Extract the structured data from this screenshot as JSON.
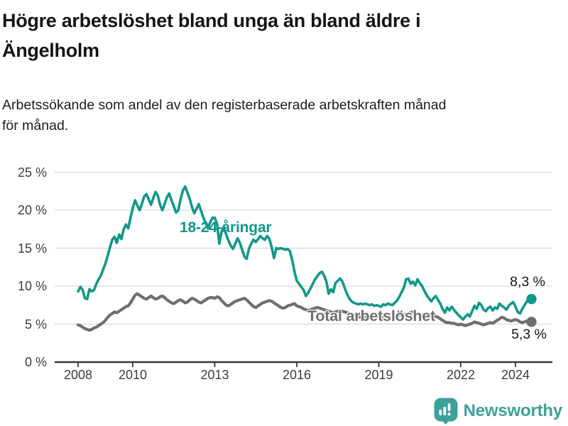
{
  "header": {
    "title_line1": "Högre arbetslöshet bland unga än bland äldre i",
    "title_line2": "Ängelholm",
    "subtitle_line1": "Arbetssökande som andel av den registerbaserade arbetskraften månad",
    "subtitle_line2": "för månad."
  },
  "chart_data": {
    "type": "line",
    "title": "Högre arbetslöshet bland unga än bland äldre i Ängelholm",
    "xlabel": "",
    "ylabel": "",
    "ylim": [
      0,
      25
    ],
    "grid": "horizontal",
    "legend_position": "inline-labels",
    "x_base_year": 2008,
    "x_unit": "month",
    "x_range_label": "2008-01 till 2024-08",
    "y_ticks": [
      {
        "value": 25,
        "label": "25 %"
      },
      {
        "value": 20,
        "label": "20 %"
      },
      {
        "value": 15,
        "label": "15 %"
      },
      {
        "value": 10,
        "label": "10 %"
      },
      {
        "value": 5,
        "label": "5 %"
      },
      {
        "value": 0,
        "label": "0 %"
      }
    ],
    "x_ticks": [
      {
        "year": 2008,
        "label": "2008"
      },
      {
        "year": 2010,
        "label": "2010"
      },
      {
        "year": 2013,
        "label": "2013"
      },
      {
        "year": 2016,
        "label": "2016"
      },
      {
        "year": 2019,
        "label": "2019"
      },
      {
        "year": 2022,
        "label": "2022"
      },
      {
        "year": 2024,
        "label": "2024"
      }
    ],
    "series": [
      {
        "name": "18-24-åringar",
        "color": "#12988b",
        "end_label": "8,3 %",
        "end_value": 8.3,
        "values": [
          9.3,
          9.9,
          9.5,
          8.4,
          8.3,
          9.6,
          9.3,
          9.5,
          10.3,
          10.9,
          11.4,
          12.2,
          13.0,
          14.0,
          15.1,
          16.1,
          16.5,
          15.7,
          16.8,
          16.2,
          17.5,
          18.1,
          17.6,
          19.0,
          20.3,
          21.3,
          20.6,
          20.0,
          20.8,
          21.8,
          22.1,
          21.4,
          20.7,
          21.6,
          22.4,
          21.9,
          20.7,
          20.0,
          20.8,
          21.7,
          22.2,
          21.3,
          20.5,
          19.7,
          20.0,
          21.5,
          22.6,
          23.1,
          22.3,
          21.5,
          20.4,
          19.6,
          20.2,
          20.8,
          19.9,
          19.0,
          18.3,
          17.6,
          18.4,
          19.0,
          19.0,
          18.2,
          15.6,
          17.2,
          17.8,
          16.8,
          16.0,
          15.3,
          14.9,
          15.6,
          16.3,
          15.7,
          14.8,
          13.9,
          13.6,
          14.9,
          15.6,
          16.1,
          15.8,
          16.2,
          16.6,
          16.3,
          16.1,
          16.6,
          16.2,
          15.1,
          13.7,
          15.0,
          14.9,
          15.0,
          14.9,
          14.8,
          14.9,
          14.6,
          13.4,
          11.9,
          10.7,
          10.3,
          9.9,
          9.5,
          8.7,
          9.1,
          9.7,
          10.3,
          10.9,
          11.3,
          11.7,
          11.9,
          11.4,
          10.6,
          9.0,
          9.6,
          9.2,
          10.4,
          10.7,
          11.0,
          10.6,
          9.8,
          9.0,
          8.4,
          8.0,
          7.8,
          7.7,
          7.6,
          7.7,
          7.6,
          7.7,
          7.6,
          7.5,
          7.6,
          7.4,
          7.5,
          7.4,
          7.3,
          7.6,
          7.5,
          7.7,
          7.6,
          7.5,
          7.8,
          8.1,
          8.6,
          9.2,
          9.8,
          10.9,
          11.0,
          10.3,
          10.6,
          10.1,
          10.9,
          10.4,
          10.0,
          9.4,
          8.8,
          8.4,
          8.0,
          8.4,
          8.7,
          8.2,
          7.7,
          7.0,
          6.5,
          7.2,
          6.8,
          7.3,
          6.9,
          6.5,
          6.2,
          5.9,
          5.6,
          6.0,
          6.3,
          6.0,
          6.7,
          7.4,
          7.0,
          7.8,
          7.5,
          6.9,
          6.7,
          7.1,
          7.3,
          6.8,
          7.2,
          7.0,
          7.7,
          7.4,
          7.2,
          6.9,
          7.4,
          7.7,
          7.9,
          7.3,
          6.6,
          6.4,
          7.0,
          7.5,
          8.0,
          8.2,
          8.3
        ]
      },
      {
        "name": "Total arbetslöshet",
        "color": "#6f6f6f",
        "end_label": "5,3 %",
        "end_value": 5.3,
        "values": [
          4.9,
          4.8,
          4.6,
          4.4,
          4.3,
          4.2,
          4.3,
          4.5,
          4.6,
          4.8,
          5.0,
          5.2,
          5.5,
          5.9,
          6.2,
          6.4,
          6.6,
          6.5,
          6.7,
          6.9,
          7.1,
          7.3,
          7.4,
          7.8,
          8.3,
          8.8,
          9.0,
          8.8,
          8.6,
          8.4,
          8.3,
          8.5,
          8.7,
          8.5,
          8.3,
          8.4,
          8.6,
          8.7,
          8.5,
          8.2,
          8.0,
          7.8,
          7.7,
          7.9,
          8.1,
          8.2,
          8.0,
          7.8,
          7.9,
          8.2,
          8.4,
          8.3,
          8.1,
          7.9,
          7.8,
          8.0,
          8.2,
          8.4,
          8.5,
          8.5,
          8.4,
          8.6,
          8.5,
          8.1,
          7.8,
          7.5,
          7.4,
          7.6,
          7.8,
          8.0,
          8.1,
          8.2,
          8.3,
          8.4,
          8.2,
          7.9,
          7.6,
          7.3,
          7.2,
          7.4,
          7.6,
          7.8,
          7.9,
          8.0,
          8.1,
          8.0,
          7.8,
          7.6,
          7.4,
          7.2,
          7.1,
          7.2,
          7.4,
          7.5,
          7.6,
          7.7,
          7.4,
          7.3,
          7.2,
          7.0,
          6.9,
          6.8,
          6.9,
          7.0,
          7.1,
          7.2,
          7.1,
          7.0,
          6.9,
          6.8,
          6.7,
          6.6,
          6.5,
          6.6,
          6.7,
          6.8,
          6.7,
          6.6,
          6.5,
          6.4,
          6.3,
          6.2,
          6.1,
          6.0,
          5.9,
          5.8,
          5.9,
          6.0,
          5.9,
          5.8,
          5.9,
          6.0,
          5.9,
          5.8,
          5.9,
          6.0,
          5.9,
          5.8,
          5.9,
          6.0,
          6.1,
          6.2,
          6.2,
          6.3,
          6.3,
          6.4,
          6.5,
          6.6,
          6.5,
          6.4,
          6.3,
          6.2,
          6.1,
          6.0,
          6.0,
          6.1,
          6.1,
          6.0,
          5.9,
          5.7,
          5.5,
          5.3,
          5.2,
          5.2,
          5.1,
          5.1,
          5.0,
          4.9,
          5.0,
          4.9,
          4.8,
          4.9,
          5.0,
          5.1,
          5.3,
          5.2,
          5.1,
          5.0,
          4.9,
          5.0,
          5.1,
          5.2,
          5.1,
          5.3,
          5.5,
          5.7,
          5.9,
          5.8,
          5.6,
          5.5,
          5.4,
          5.5,
          5.6,
          5.5,
          5.3,
          5.2,
          5.3,
          5.4,
          5.4,
          5.3
        ]
      }
    ],
    "style": {
      "gridline_color": "#d9d9d9",
      "axis_color": "#3a3a3a",
      "tick_text_color": "#3d3d3d"
    }
  },
  "footer": {
    "brand": "Newsworthy",
    "brand_color": "#3EA09B"
  }
}
